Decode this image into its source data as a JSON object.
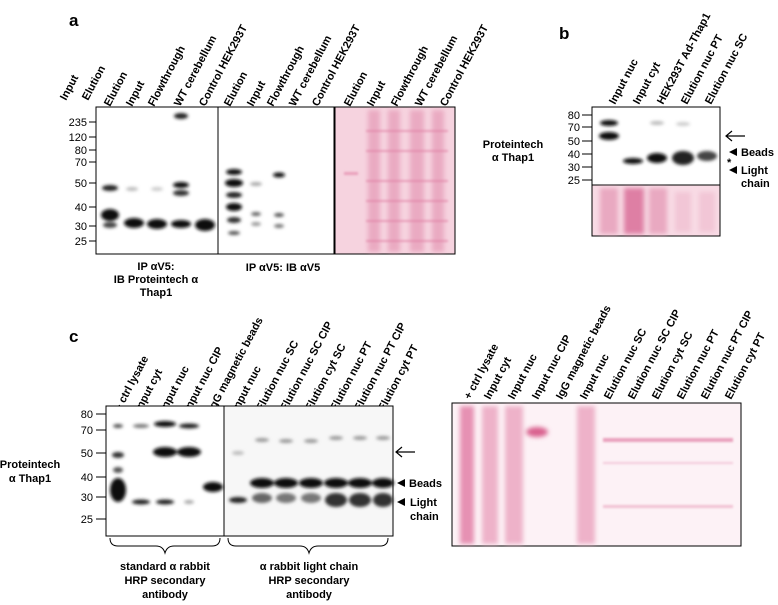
{
  "panels": {
    "a": {
      "letter": "a",
      "markers": [
        "235",
        "120",
        "80",
        "70",
        "50",
        "40",
        "30",
        "25"
      ],
      "lanes": [
        "Input",
        "Elution",
        "Elution",
        "Input",
        "Flowthrough",
        "WT cerebellum",
        "Control HEK293T",
        "Elution",
        "Input",
        "Flowthrough",
        "WT cerebellum",
        "Control HEK293T",
        "Elution",
        "Input",
        "Flowthrough",
        "WT cerebellum",
        "Control HEK293T"
      ],
      "caption1": [
        "IP αV5:",
        "IB Proteintech α",
        "Thap1"
      ],
      "caption2": "IP αV5: IB αV5"
    },
    "b": {
      "letter": "b",
      "markers": [
        "80",
        "70",
        "50",
        "40",
        "30",
        "25"
      ],
      "lanes": [
        "Input nuc",
        "Input cyt",
        "HEK293T Ad-Thap1",
        "Elution nuc PT",
        "Elution nuc SC"
      ],
      "antibody": [
        "Proteintech",
        "α Thap1"
      ],
      "ann_beads": "Beads",
      "ann_star": "*",
      "ann_light": [
        "Light",
        "chain"
      ]
    },
    "c": {
      "letter": "c",
      "markers": [
        "80",
        "70",
        "50",
        "40",
        "30",
        "25"
      ],
      "lanes": [
        "+ ctrl lysate",
        "Input cyt",
        "Input nuc",
        "Input nuc CIP",
        "IgG magnetic beads",
        "Input nuc",
        "Elution nuc SC",
        "Elution nuc SC CIP",
        "Elution cyt SC",
        "Elution nuc PT",
        "Elution nuc PT CIP",
        "Elution cyt PT"
      ],
      "antibody": [
        "Proteintech",
        "α Thap1"
      ],
      "ann_beads": "Beads",
      "ann_light": [
        "Light",
        "chain"
      ],
      "bracket1": [
        "standard α rabbit",
        "HRP secondary",
        "antibody"
      ],
      "bracket2": [
        "α rabbit light chain",
        "HRP secondary",
        "antibody"
      ],
      "ponceau_lanes": [
        "+ ctrl lysate",
        "Input cyt",
        "Input nuc",
        "Input nuc CIP",
        "IgG magnetic beads",
        "Input nuc",
        "Elution nuc SC",
        "Elution nuc SC CIP",
        "Elution cyt SC",
        "Elution nuc PT",
        "Elution nuc PT CIP",
        "Elution cyt PT"
      ]
    }
  },
  "colors": {
    "ponceau": "#f4c6d6",
    "band_pink": "#d9749a",
    "band_dark": "#111111"
  }
}
